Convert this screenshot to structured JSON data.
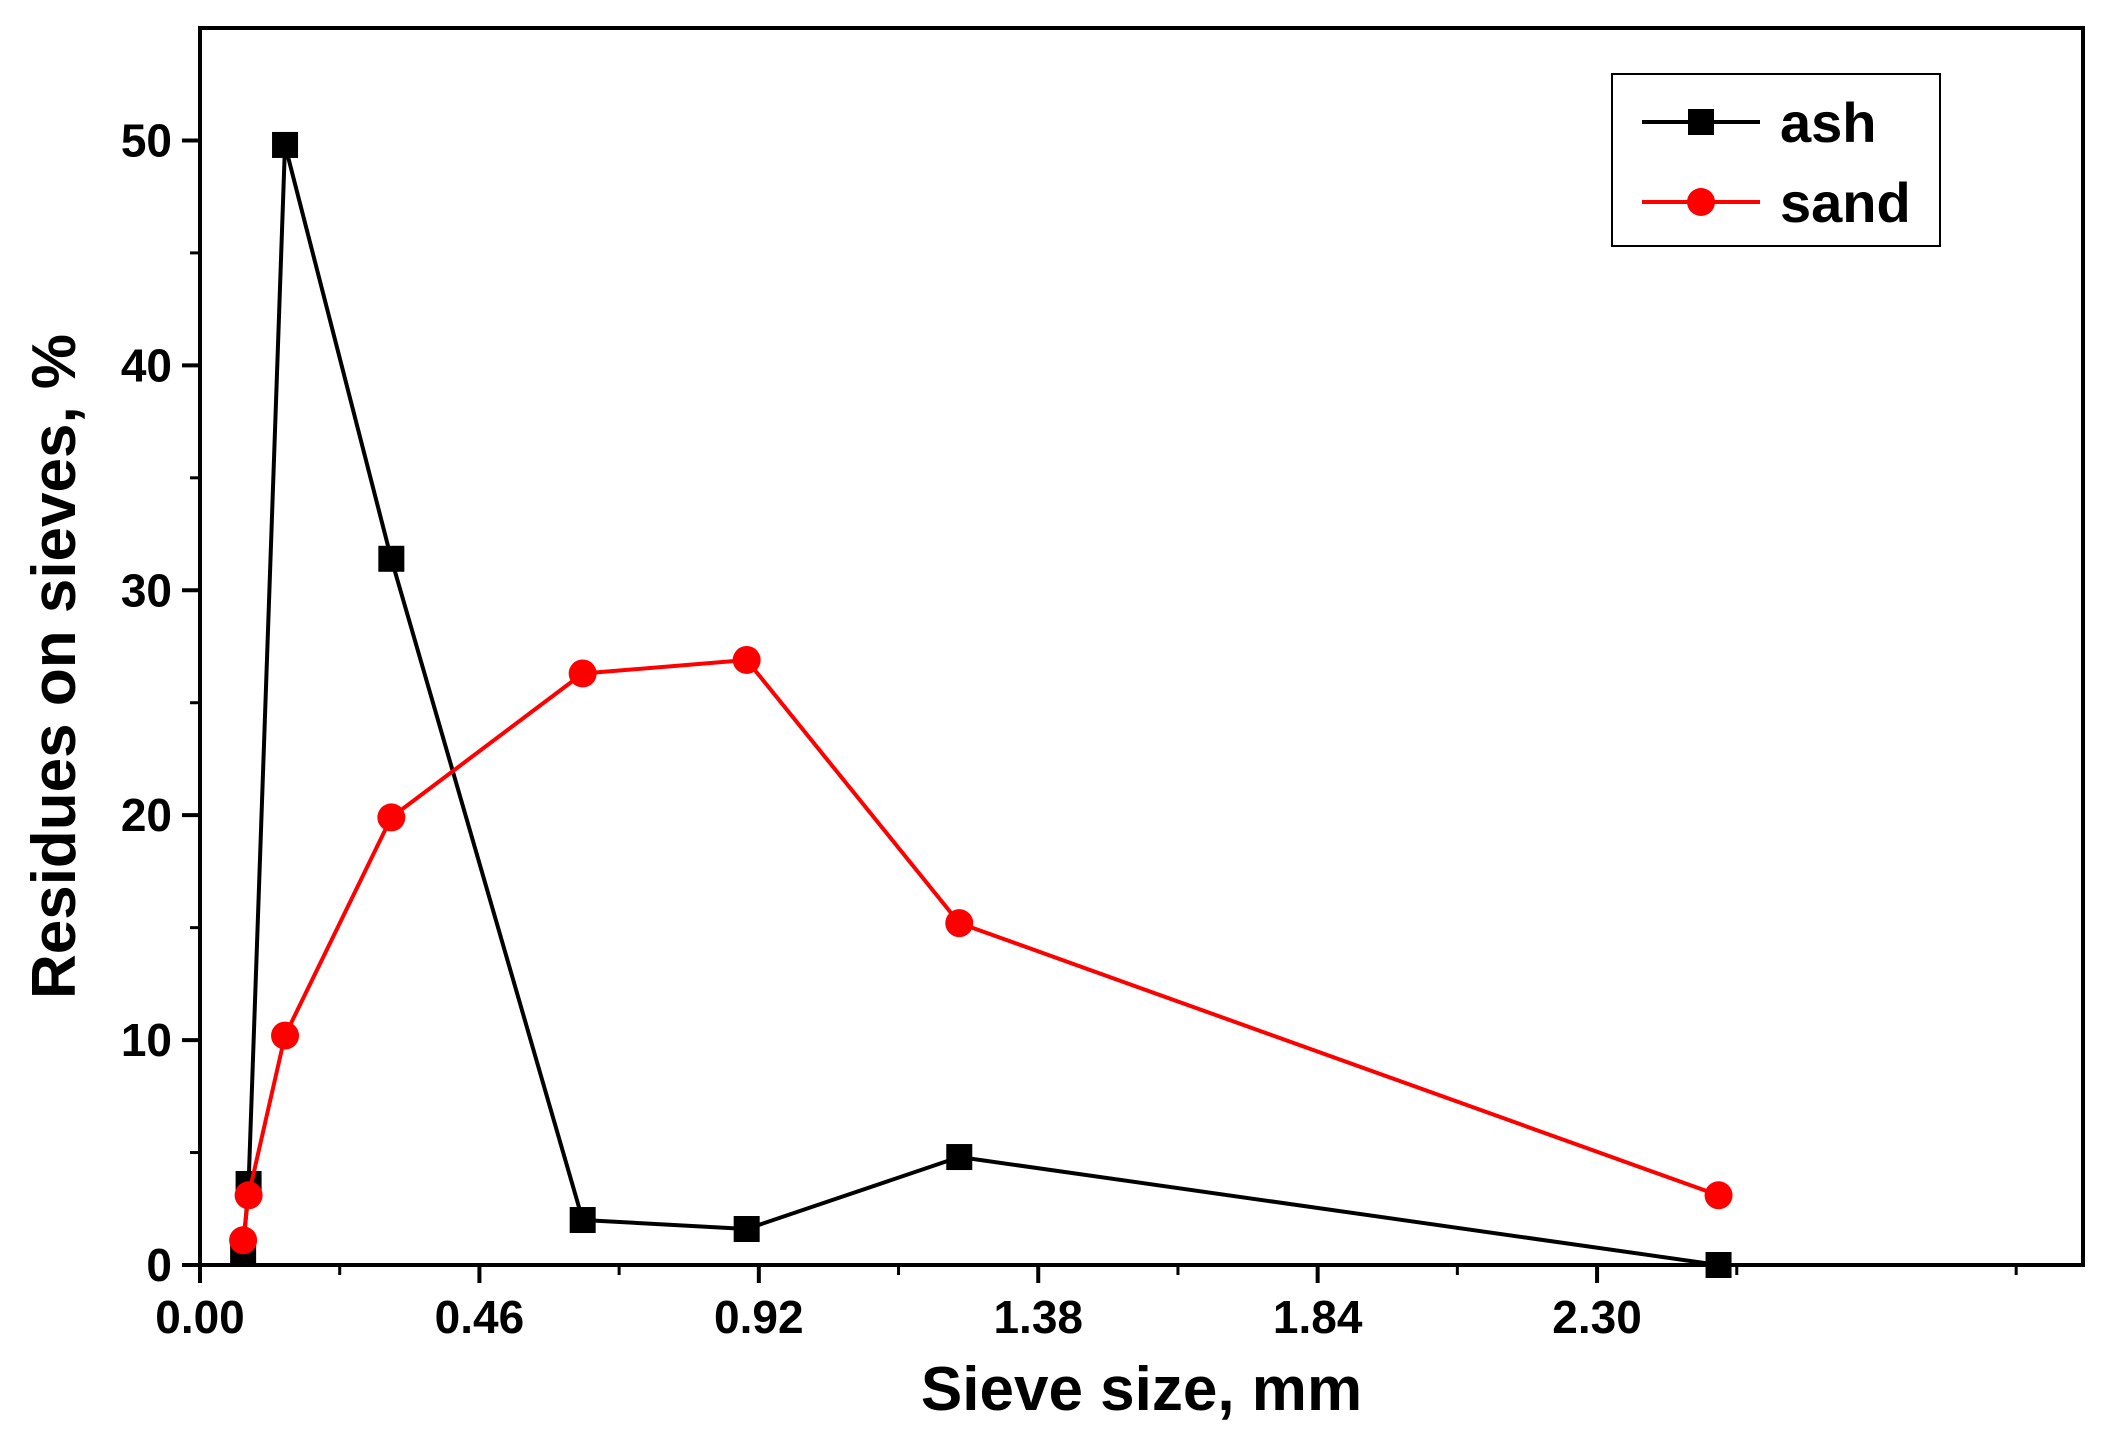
{
  "chart_data": {
    "type": "line",
    "title": "",
    "xlabel": "Sieve size, mm",
    "ylabel": "Residues on sieves, %",
    "xlim": [
      0,
      3.1
    ],
    "ylim": [
      0,
      55
    ],
    "x_ticks": [
      0.0,
      0.46,
      0.92,
      1.38,
      1.84,
      2.3
    ],
    "x_tick_labels": [
      "0.00",
      "0.46",
      "0.92",
      "1.38",
      "1.84",
      "2.30"
    ],
    "x_minor_step": 0.23,
    "y_ticks": [
      0,
      10,
      20,
      30,
      40,
      50
    ],
    "y_tick_labels": [
      "0",
      "10",
      "20",
      "30",
      "40",
      "50"
    ],
    "y_minor_step": 5,
    "grid": false,
    "legend_position": "top-right",
    "series": [
      {
        "name": "ash",
        "color": "#000000",
        "marker": "square",
        "x": [
          0.071,
          0.08,
          0.14,
          0.315,
          0.63,
          0.9,
          1.25,
          2.5
        ],
        "y": [
          0.6,
          3.6,
          49.8,
          31.4,
          2.0,
          1.6,
          4.8,
          0.0
        ]
      },
      {
        "name": "sand",
        "color": "#ff0000",
        "marker": "circle",
        "x": [
          0.071,
          0.08,
          0.14,
          0.315,
          0.63,
          0.9,
          1.25,
          2.5
        ],
        "y": [
          1.1,
          3.1,
          10.2,
          19.9,
          26.3,
          26.9,
          15.2,
          3.1
        ]
      }
    ]
  }
}
